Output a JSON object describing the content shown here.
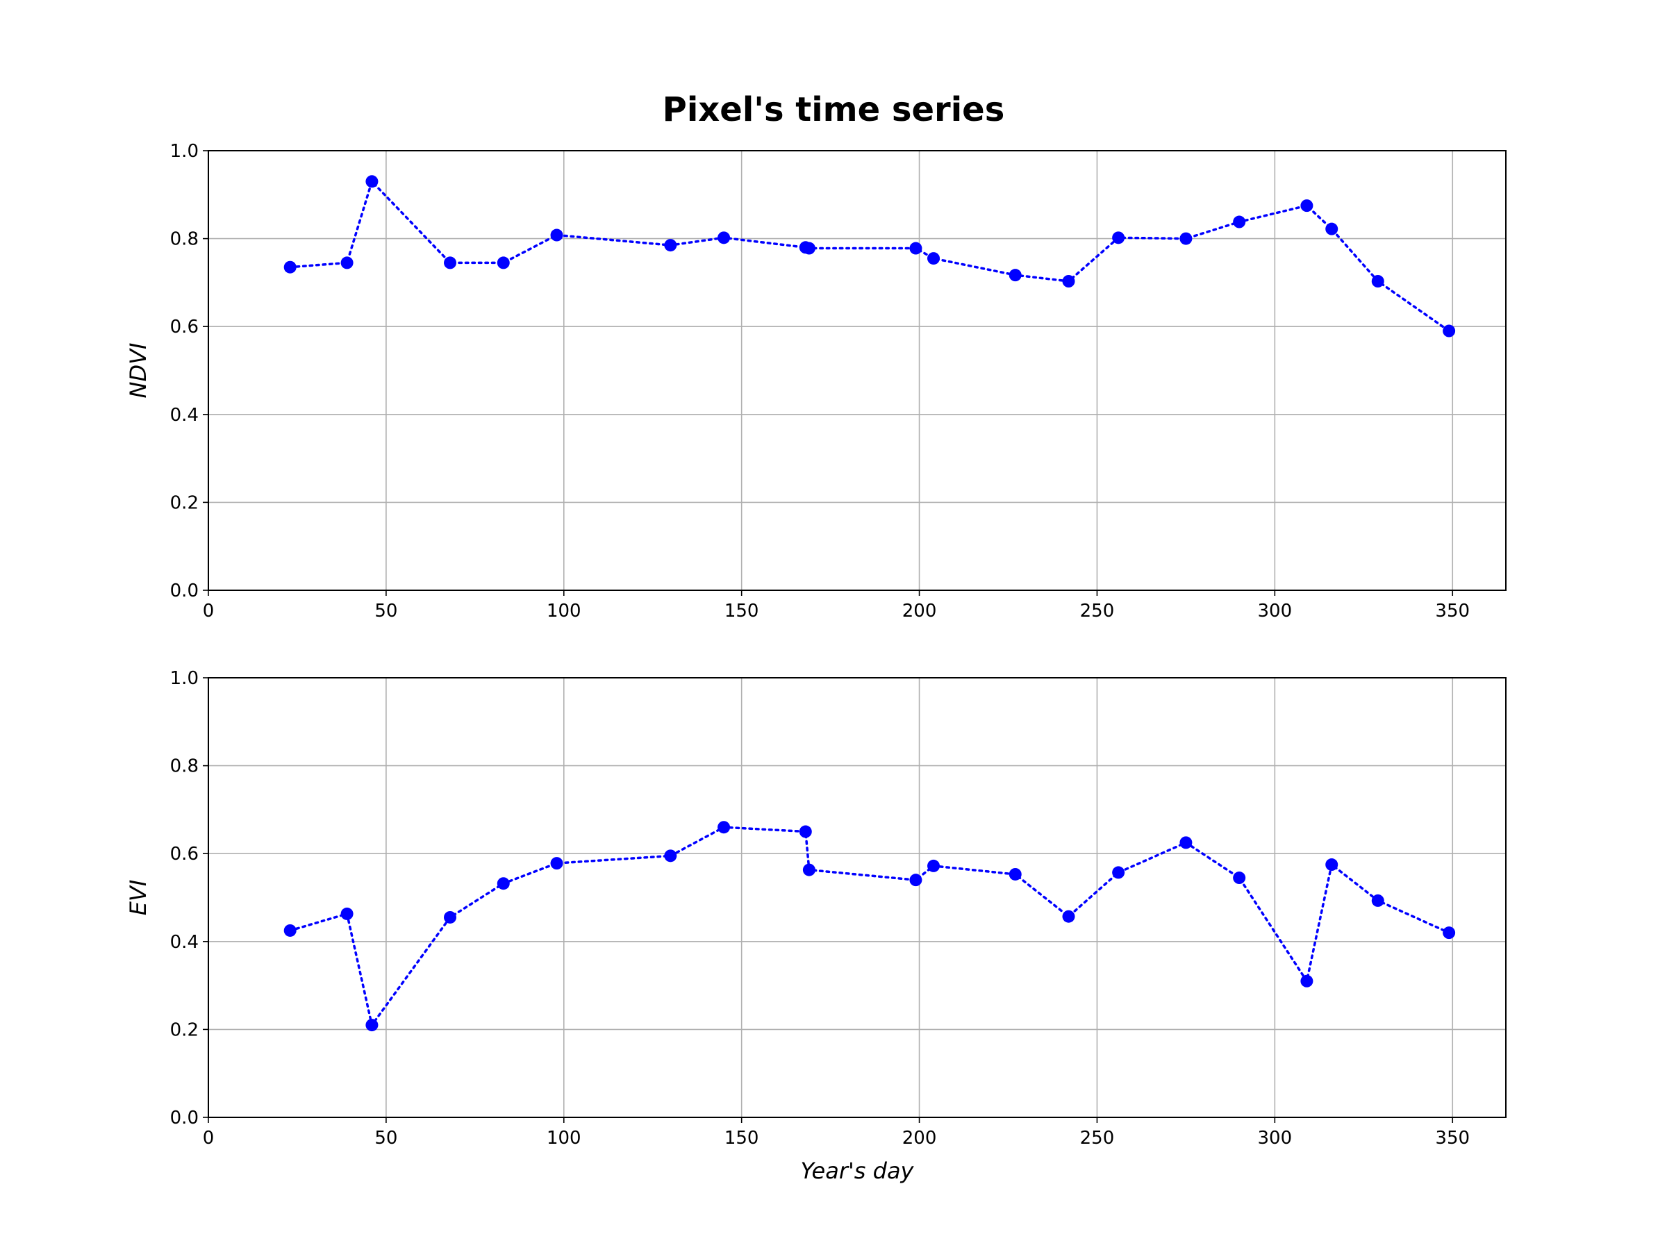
{
  "figure": {
    "title": "Pixel's time series"
  },
  "chart_data": [
    {
      "type": "line",
      "title": "",
      "xlabel": "",
      "ylabel": "NDVI",
      "xlim": [
        0,
        365
      ],
      "ylim": [
        0,
        1.0
      ],
      "xticks": [
        0,
        50,
        100,
        150,
        200,
        250,
        300,
        350
      ],
      "yticks": [
        0.0,
        0.2,
        0.4,
        0.6,
        0.8,
        1.0
      ],
      "xtick_labels": [
        "0",
        "50",
        "100",
        "150",
        "200",
        "250",
        "300",
        "350"
      ],
      "ytick_labels": [
        "0.0",
        "0.2",
        "0.4",
        "0.6",
        "0.8",
        "1.0"
      ],
      "grid": true,
      "series": [
        {
          "color": "#0000ff",
          "linestyle": "dotted",
          "marker": "circle",
          "x": [
            23,
            39,
            46,
            68,
            83,
            98,
            130,
            145,
            168,
            169,
            199,
            204,
            227,
            242,
            256,
            275,
            290,
            309,
            316,
            329,
            349
          ],
          "y": [
            0.735,
            0.745,
            0.93,
            0.745,
            0.745,
            0.808,
            0.785,
            0.802,
            0.78,
            0.778,
            0.778,
            0.755,
            0.717,
            0.703,
            0.802,
            0.8,
            0.838,
            0.875,
            0.822,
            0.703,
            0.59
          ]
        }
      ]
    },
    {
      "type": "line",
      "title": "",
      "xlabel": "Year's day",
      "ylabel": "EVI",
      "xlim": [
        0,
        365
      ],
      "ylim": [
        0,
        1.0
      ],
      "xticks": [
        0,
        50,
        100,
        150,
        200,
        250,
        300,
        350
      ],
      "yticks": [
        0.0,
        0.2,
        0.4,
        0.6,
        0.8,
        1.0
      ],
      "xtick_labels": [
        "0",
        "50",
        "100",
        "150",
        "200",
        "250",
        "300",
        "350"
      ],
      "ytick_labels": [
        "0.0",
        "0.2",
        "0.4",
        "0.6",
        "0.8",
        "1.0"
      ],
      "grid": true,
      "series": [
        {
          "color": "#0000ff",
          "linestyle": "dotted",
          "marker": "circle",
          "x": [
            23,
            39,
            46,
            68,
            83,
            98,
            130,
            145,
            168,
            169,
            199,
            204,
            227,
            242,
            256,
            275,
            290,
            309,
            316,
            329,
            349
          ],
          "y": [
            0.425,
            0.463,
            0.21,
            0.455,
            0.532,
            0.578,
            0.595,
            0.66,
            0.65,
            0.563,
            0.54,
            0.572,
            0.553,
            0.457,
            0.557,
            0.625,
            0.545,
            0.31,
            0.575,
            0.493,
            0.42
          ]
        }
      ]
    }
  ]
}
